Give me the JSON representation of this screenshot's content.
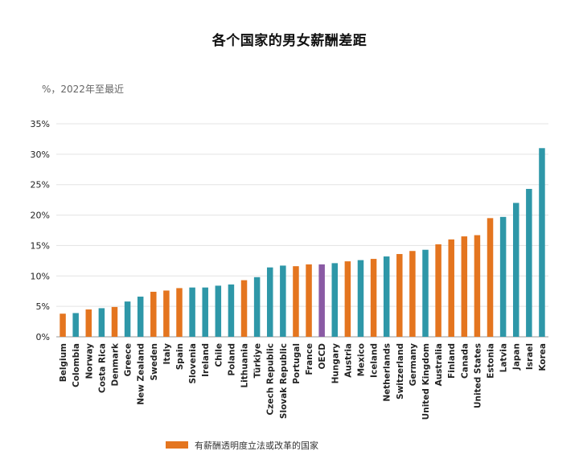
{
  "chart_data": {
    "type": "bar",
    "title": "各个国家的男女薪酬差距",
    "subtitle": "%，2022年至最近",
    "xlabel": "",
    "ylabel": "",
    "ylim": [
      0,
      35
    ],
    "yticks": [
      0,
      5,
      10,
      15,
      20,
      25,
      30,
      35
    ],
    "ytick_labels": [
      "0%",
      "5%",
      "10%",
      "15%",
      "20%",
      "25%",
      "30%",
      "35%"
    ],
    "categories": [
      "Belgium",
      "Colombia",
      "Norway",
      "Costa Rica",
      "Denmark",
      "Greece",
      "New Zealand",
      "Sweden",
      "Italy",
      "Spain",
      "Slovenia",
      "Ireland",
      "Chile",
      "Poland",
      "Lithuania",
      "Türkiye",
      "Czech Republic",
      "Slovak Republic",
      "Portugal",
      "France",
      "OECD",
      "Hungary",
      "Austria",
      "Mexico",
      "Iceland",
      "Netherlands",
      "Switzerland",
      "Germany",
      "United Kingdom",
      "Australia",
      "Finland",
      "Canada",
      "United States",
      "Estonia",
      "Latvia",
      "Japan",
      "Israel",
      "Korea"
    ],
    "values": [
      3.8,
      3.9,
      4.5,
      4.7,
      4.9,
      5.8,
      6.6,
      7.4,
      7.6,
      8.0,
      8.1,
      8.1,
      8.4,
      8.6,
      9.3,
      9.8,
      11.4,
      11.7,
      11.6,
      11.9,
      11.9,
      12.1,
      12.4,
      12.6,
      12.8,
      13.2,
      13.6,
      14.1,
      14.3,
      15.2,
      16.0,
      16.5,
      16.7,
      19.5,
      19.7,
      22.0,
      24.3,
      31.0
    ],
    "groups": [
      "legislation",
      "other",
      "legislation",
      "other",
      "legislation",
      "other",
      "other",
      "legislation",
      "legislation",
      "legislation",
      "other",
      "other",
      "other",
      "other",
      "legislation",
      "other",
      "other",
      "other",
      "legislation",
      "legislation",
      "oecd",
      "other",
      "legislation",
      "other",
      "legislation",
      "other",
      "legislation",
      "legislation",
      "other",
      "legislation",
      "legislation",
      "legislation",
      "legislation",
      "legislation",
      "other",
      "other",
      "other",
      "other"
    ],
    "colors": {
      "legislation": "#e4751f",
      "other": "#2e97a8",
      "oecd": "#8a5aa4",
      "grid": "#e3e3e3",
      "axis": "#999999"
    },
    "legend": [
      {
        "key": "legislation",
        "label": "有薪酬透明度立法或改革的国家"
      }
    ]
  }
}
